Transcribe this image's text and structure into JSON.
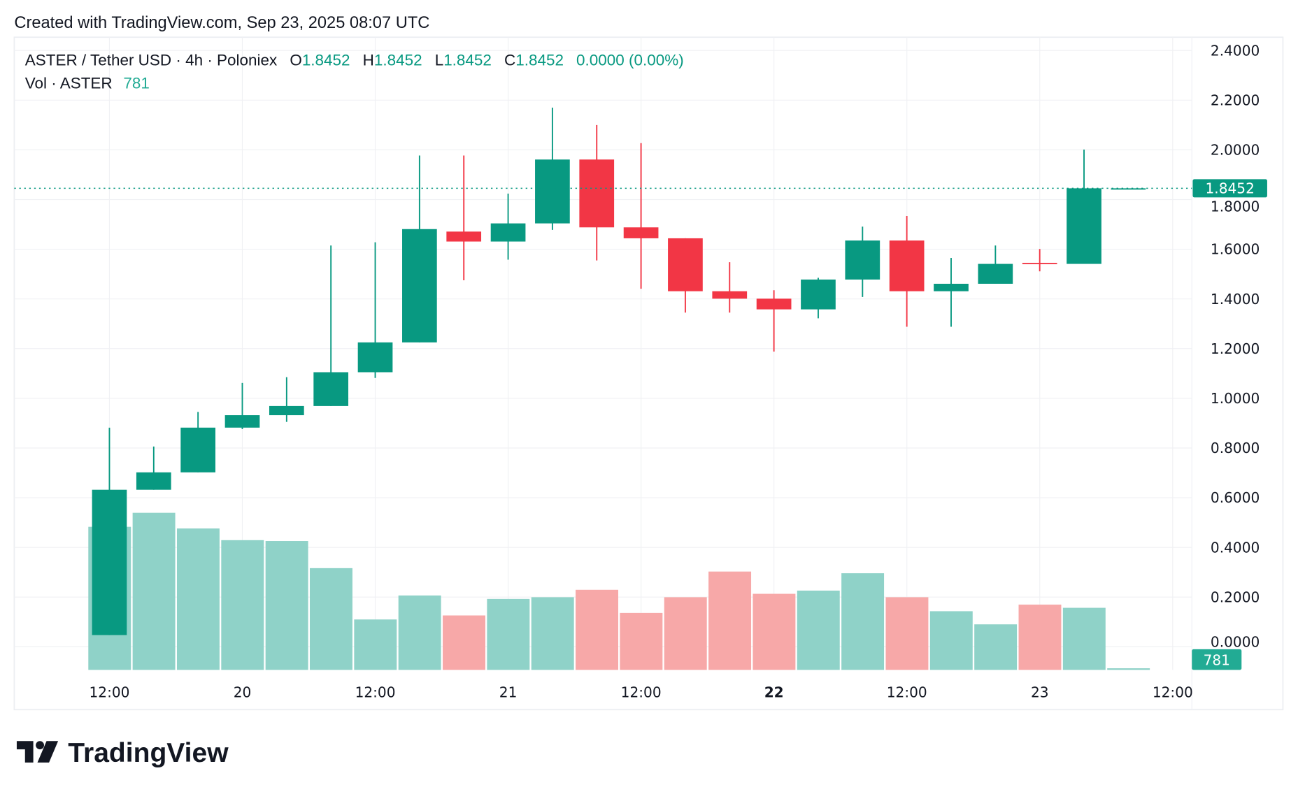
{
  "header": {
    "created": "Created with TradingView.com, Sep 23, 2025 08:07 UTC"
  },
  "legend": {
    "symbol": "ASTER / Tether USD · 4h · Poloniex",
    "o_label": "O",
    "o": "1.8452",
    "h_label": "H",
    "h": "1.8452",
    "l_label": "L",
    "l": "1.8452",
    "c_label": "C",
    "c": "1.8452",
    "change": "0.0000 (0.00%)",
    "vol_label": "Vol · ASTER",
    "vol": "781"
  },
  "price_label": "1.8452",
  "volume_label": "781",
  "brand": "TradingView",
  "colors": {
    "up": "#089981",
    "down": "#f23645",
    "vol_up": "#8fd2c8",
    "vol_down": "#f7a8a8",
    "vol_badge": "#22ab94"
  },
  "chart_data": {
    "type": "candlestick",
    "interval": "4h",
    "x_ticks": [
      {
        "label": "12:00",
        "bold": false
      },
      {
        "label": "20",
        "bold": false
      },
      {
        "label": "12:00",
        "bold": false
      },
      {
        "label": "21",
        "bold": false
      },
      {
        "label": "12:00",
        "bold": false
      },
      {
        "label": "22",
        "bold": true
      },
      {
        "label": "12:00",
        "bold": false
      },
      {
        "label": "23",
        "bold": false
      },
      {
        "label": "12:00",
        "bold": false
      }
    ],
    "y_ticks": [
      "2.4000",
      "2.2000",
      "2.0000",
      "1.8000",
      "1.6000",
      "1.4000",
      "1.2000",
      "1.0000",
      "0.8000",
      "0.6000",
      "0.4000",
      "0.2000",
      "0.0000"
    ],
    "ylim": [
      0,
      2.4
    ],
    "grid": true,
    "candles": [
      {
        "time": "Sep 19 12:00",
        "o": 0.047,
        "h": 0.882,
        "l": 0.047,
        "c": 0.632,
        "v": 67500
      },
      {
        "time": "Sep 19 16:00",
        "o": 0.632,
        "h": 0.806,
        "l": 0.632,
        "c": 0.702,
        "v": 74100
      },
      {
        "time": "Sep 19 20:00",
        "o": 0.702,
        "h": 0.945,
        "l": 0.702,
        "c": 0.882,
        "v": 66700
      },
      {
        "time": "Sep 20 00:00",
        "o": 0.882,
        "h": 1.062,
        "l": 0.876,
        "c": 0.932,
        "v": 61200
      },
      {
        "time": "Sep 20 04:00",
        "o": 0.932,
        "h": 1.085,
        "l": 0.905,
        "c": 0.969,
        "v": 60800
      },
      {
        "time": "Sep 20 08:00",
        "o": 0.969,
        "h": 1.615,
        "l": 0.969,
        "c": 1.105,
        "v": 48000
      },
      {
        "time": "Sep 20 12:00",
        "o": 1.105,
        "h": 1.628,
        "l": 1.082,
        "c": 1.225,
        "v": 23800
      },
      {
        "time": "Sep 20 16:00",
        "o": 1.225,
        "h": 1.977,
        "l": 1.225,
        "c": 1.681,
        "v": 35100
      },
      {
        "time": "Sep 20 20:00",
        "o": 1.671,
        "h": 1.977,
        "l": 1.475,
        "c": 1.631,
        "v": 25700
      },
      {
        "time": "Sep 21 00:00",
        "o": 1.631,
        "h": 1.824,
        "l": 1.558,
        "c": 1.704,
        "v": 33500
      },
      {
        "time": "Sep 21 04:00",
        "o": 1.704,
        "h": 2.17,
        "l": 1.678,
        "c": 1.961,
        "v": 34300
      },
      {
        "time": "Sep 21 08:00",
        "o": 1.961,
        "h": 2.1,
        "l": 1.555,
        "c": 1.688,
        "v": 37800
      },
      {
        "time": "Sep 21 12:00",
        "o": 1.688,
        "h": 2.027,
        "l": 1.441,
        "c": 1.644,
        "v": 26900
      },
      {
        "time": "Sep 21 16:00",
        "o": 1.644,
        "h": 1.644,
        "l": 1.345,
        "c": 1.431,
        "v": 34300
      },
      {
        "time": "Sep 21 20:00",
        "o": 1.431,
        "h": 1.548,
        "l": 1.345,
        "c": 1.401,
        "v": 46400
      },
      {
        "time": "Sep 22 00:00",
        "o": 1.401,
        "h": 1.435,
        "l": 1.188,
        "c": 1.358,
        "v": 35900
      },
      {
        "time": "Sep 22 04:00",
        "o": 1.358,
        "h": 1.485,
        "l": 1.322,
        "c": 1.478,
        "v": 37400
      },
      {
        "time": "Sep 22 08:00",
        "o": 1.478,
        "h": 1.691,
        "l": 1.408,
        "c": 1.635,
        "v": 45600
      },
      {
        "time": "Sep 22 12:00",
        "o": 1.635,
        "h": 1.734,
        "l": 1.288,
        "c": 1.431,
        "v": 34300
      },
      {
        "time": "Sep 22 16:00",
        "o": 1.431,
        "h": 1.565,
        "l": 1.288,
        "c": 1.461,
        "v": 27700
      },
      {
        "time": "Sep 22 20:00",
        "o": 1.461,
        "h": 1.615,
        "l": 1.461,
        "c": 1.541,
        "v": 21500
      },
      {
        "time": "Sep 23 00:00",
        "o": 1.545,
        "h": 1.601,
        "l": 1.511,
        "c": 1.541,
        "v": 30800
      },
      {
        "time": "Sep 23 04:00",
        "o": 1.541,
        "h": 2.001,
        "l": 1.541,
        "c": 1.8452,
        "v": 29300
      },
      {
        "time": "Sep 23 08:00",
        "o": 1.8452,
        "h": 1.8452,
        "l": 1.8452,
        "c": 1.8452,
        "v": 781
      }
    ]
  }
}
